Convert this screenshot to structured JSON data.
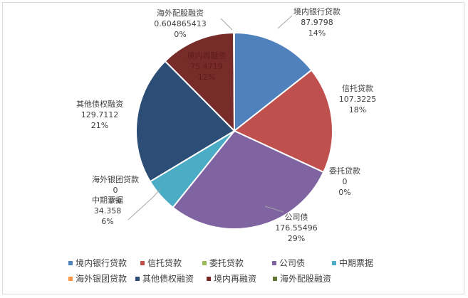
{
  "chart_data": {
    "type": "pie",
    "title": "",
    "legend_position": "bottom",
    "slices": [
      {
        "name": "境内银行贷款",
        "value": 87.9798,
        "percent": "14%",
        "color": "#4f81bd"
      },
      {
        "name": "信托贷款",
        "value": 107.3225,
        "percent": "18%",
        "color": "#c0504d"
      },
      {
        "name": "委托贷款",
        "value": 0,
        "percent": "0%",
        "color": "#9bbb59"
      },
      {
        "name": "公司债",
        "value": 176.55496,
        "percent": "29%",
        "color": "#8064a2"
      },
      {
        "name": "中期票据",
        "value": 34.358,
        "percent": "6%",
        "color": "#4bacc6"
      },
      {
        "name": "海外银团贷款",
        "value": 0,
        "percent": "0%",
        "color": "#f79646"
      },
      {
        "name": "其他债权融资",
        "value": 129.7112,
        "percent": "21%",
        "color": "#2c4d75"
      },
      {
        "name": "境内再融资",
        "value": 75.4719,
        "percent": "12%",
        "color": "#772c2a"
      },
      {
        "name": "海外配股融资",
        "value": 0.604865413,
        "percent": "0%",
        "color": "#5f7530"
      }
    ],
    "value_labels": [
      "87.9798",
      "107.3225",
      "0",
      "176.55496",
      "34.358",
      "0",
      "129.7112",
      "75.4719",
      "0.604865413"
    ]
  }
}
